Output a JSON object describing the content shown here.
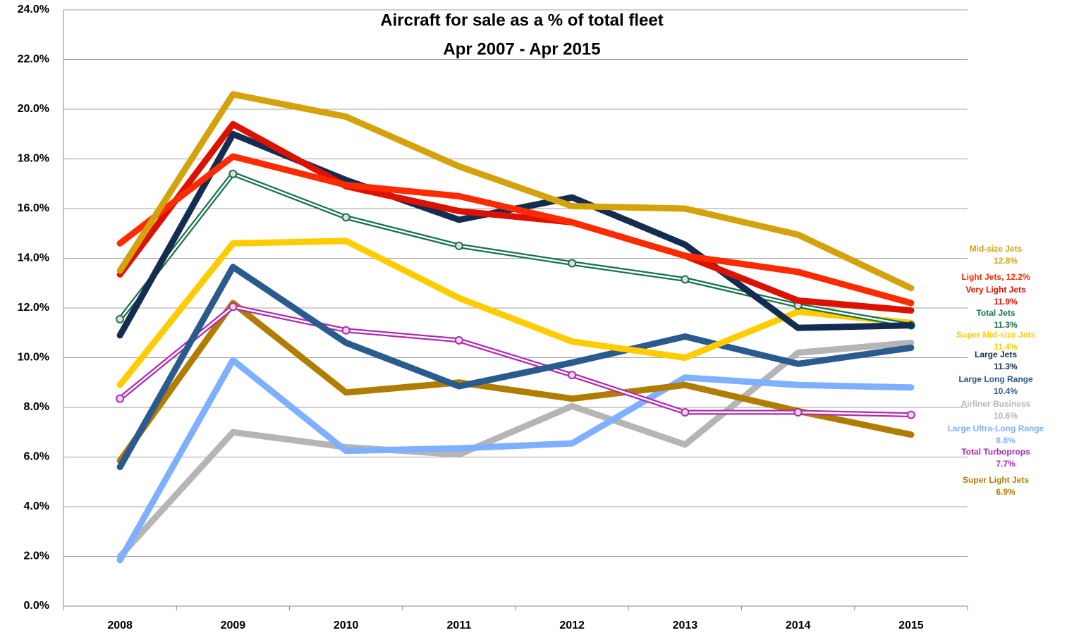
{
  "chart_data": {
    "type": "line",
    "title": [
      "Aircraft for sale as a % of total fleet",
      "Apr 2007 - Apr 2015"
    ],
    "categories": [
      "2008",
      "2009",
      "2010",
      "2011",
      "2012",
      "2013",
      "2014",
      "2015"
    ],
    "ylim": [
      0,
      24
    ],
    "yticks": [
      {
        "value": 0,
        "label": "0.0%"
      },
      {
        "value": 2,
        "label": "2.0%"
      },
      {
        "value": 4,
        "label": "4.0%"
      },
      {
        "value": 6,
        "label": "6.0%"
      },
      {
        "value": 8,
        "label": "8.0%"
      },
      {
        "value": 10,
        "label": "10.0%"
      },
      {
        "value": 12,
        "label": "12.0%"
      },
      {
        "value": 14,
        "label": "14.0%"
      },
      {
        "value": 16,
        "label": "16.0%"
      },
      {
        "value": 18,
        "label": "18.0%"
      },
      {
        "value": 20,
        "label": "20.0%"
      },
      {
        "value": 22,
        "label": "22.0%"
      },
      {
        "value": 24,
        "label": "24.0%"
      }
    ],
    "grid": true,
    "series": [
      {
        "name": "Airliner Business",
        "color": "#b5b5b5",
        "values": [
          2.0,
          7.0,
          6.4,
          6.1,
          8.05,
          6.5,
          10.2,
          10.6
        ],
        "end_label": "10.6%"
      },
      {
        "name": "Large Ultra-Long Range",
        "color": "#7fb0ff",
        "values": [
          1.85,
          9.9,
          6.25,
          6.35,
          6.55,
          9.2,
          8.9,
          8.8
        ],
        "end_label": "8.8%"
      },
      {
        "name": "Super Light Jets",
        "color": "#b07d00",
        "values": [
          5.85,
          12.2,
          8.6,
          9.0,
          8.35,
          8.9,
          7.85,
          6.9
        ],
        "end_label": "6.9%"
      },
      {
        "name": "Total Turboprops",
        "color": "#b02ab0",
        "values": [
          8.35,
          12.05,
          11.1,
          10.7,
          9.3,
          7.8,
          7.8,
          7.7
        ],
        "end_label": "7.7%",
        "style": "double"
      },
      {
        "name": "Large Long Range",
        "color": "#2a5b8e",
        "values": [
          5.6,
          13.65,
          10.6,
          8.85,
          9.8,
          10.85,
          9.75,
          10.4
        ],
        "end_label": "10.4%"
      },
      {
        "name": "Super Mid-size Jets",
        "color": "#ffcc00",
        "values": [
          8.9,
          14.6,
          14.7,
          12.4,
          10.65,
          10.0,
          11.85,
          11.4
        ],
        "end_label": "11.4%"
      },
      {
        "name": "Total Jets",
        "color": "#17734a",
        "values": [
          11.55,
          17.4,
          15.65,
          14.5,
          13.8,
          13.15,
          12.1,
          11.3
        ],
        "end_label": "11.3%",
        "style": "double"
      },
      {
        "name": "Large Jets",
        "color": "#142c50",
        "values": [
          10.9,
          19.0,
          17.15,
          15.55,
          16.45,
          14.55,
          11.2,
          11.3
        ],
        "end_label": "11.3%"
      },
      {
        "name": "Very Light Jets",
        "color": "#dd1100",
        "values": [
          13.35,
          19.4,
          16.9,
          15.9,
          15.45,
          14.1,
          12.3,
          11.9
        ],
        "end_label": "11.9%"
      },
      {
        "name": "Light Jets, 12.2%",
        "color": "#ff2a00",
        "values": [
          14.6,
          18.1,
          16.95,
          16.5,
          15.45,
          14.1,
          13.45,
          12.2
        ]
      },
      {
        "name": "Mid-size Jets",
        "color": "#d4a20a",
        "values": [
          13.5,
          20.6,
          19.7,
          17.7,
          16.1,
          16.0,
          14.95,
          12.8
        ],
        "end_label": "12.8%"
      }
    ]
  }
}
